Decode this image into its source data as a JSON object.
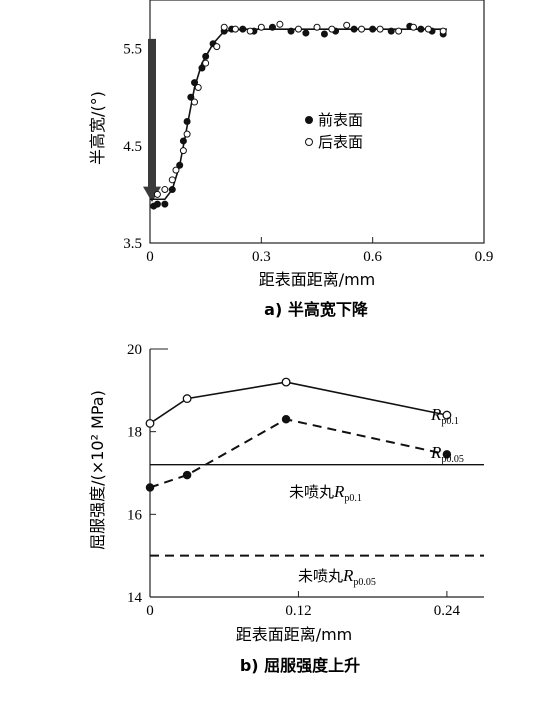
{
  "chart_data": [
    {
      "type": "scatter",
      "caption": "a) 半高宽下降",
      "xlabel": "距表面距离/mm",
      "ylabel": "半高宽/(°)",
      "xlim": [
        0,
        0.9
      ],
      "ylim": [
        3.5,
        6.0
      ],
      "xticks": [
        "0",
        "0.3",
        "0.6",
        "0.9"
      ],
      "yticks": [
        "3.5",
        "4.5",
        "5.5"
      ],
      "grid": false,
      "legend_position": "center-right",
      "series": [
        {
          "name": "前表面",
          "marker": "filled-circle",
          "points": [
            [
              0.01,
              3.88
            ],
            [
              0.02,
              3.9
            ],
            [
              0.04,
              3.9
            ],
            [
              0.06,
              4.05
            ],
            [
              0.08,
              4.3
            ],
            [
              0.09,
              4.55
            ],
            [
              0.1,
              4.75
            ],
            [
              0.11,
              5.0
            ],
            [
              0.12,
              5.15
            ],
            [
              0.14,
              5.3
            ],
            [
              0.15,
              5.42
            ],
            [
              0.17,
              5.55
            ],
            [
              0.2,
              5.68
            ],
            [
              0.22,
              5.7
            ],
            [
              0.25,
              5.7
            ],
            [
              0.28,
              5.68
            ],
            [
              0.33,
              5.72
            ],
            [
              0.38,
              5.68
            ],
            [
              0.42,
              5.66
            ],
            [
              0.47,
              5.65
            ],
            [
              0.5,
              5.68
            ],
            [
              0.55,
              5.7
            ],
            [
              0.6,
              5.7
            ],
            [
              0.65,
              5.68
            ],
            [
              0.7,
              5.73
            ],
            [
              0.73,
              5.7
            ],
            [
              0.76,
              5.68
            ],
            [
              0.79,
              5.65
            ]
          ]
        },
        {
          "name": "后表面",
          "marker": "open-circle",
          "points": [
            [
              0.02,
              4.0
            ],
            [
              0.04,
              4.05
            ],
            [
              0.06,
              4.15
            ],
            [
              0.07,
              4.25
            ],
            [
              0.09,
              4.45
            ],
            [
              0.1,
              4.62
            ],
            [
              0.12,
              4.95
            ],
            [
              0.13,
              5.1
            ],
            [
              0.15,
              5.35
            ],
            [
              0.18,
              5.52
            ],
            [
              0.2,
              5.72
            ],
            [
              0.23,
              5.7
            ],
            [
              0.27,
              5.68
            ],
            [
              0.3,
              5.72
            ],
            [
              0.35,
              5.75
            ],
            [
              0.4,
              5.7
            ],
            [
              0.45,
              5.72
            ],
            [
              0.49,
              5.7
            ],
            [
              0.53,
              5.74
            ],
            [
              0.57,
              5.7
            ],
            [
              0.62,
              5.7
            ],
            [
              0.67,
              5.68
            ],
            [
              0.71,
              5.72
            ],
            [
              0.75,
              5.7
            ],
            [
              0.79,
              5.68
            ]
          ]
        }
      ],
      "trend": [
        [
          0.0,
          3.95
        ],
        [
          0.04,
          3.95
        ],
        [
          0.06,
          4.05
        ],
        [
          0.08,
          4.3
        ],
        [
          0.1,
          4.7
        ],
        [
          0.12,
          5.1
        ],
        [
          0.14,
          5.35
        ],
        [
          0.17,
          5.55
        ],
        [
          0.2,
          5.68
        ],
        [
          0.25,
          5.7
        ],
        [
          0.4,
          5.7
        ],
        [
          0.6,
          5.7
        ],
        [
          0.8,
          5.7
        ]
      ],
      "annotation": "downward arrow at x=0 from 5.6 to 4.0"
    },
    {
      "type": "line",
      "caption": "b) 屈服强度上升",
      "xlabel": "距表面距离/mm",
      "ylabel": "屈服强度/(×10² MPa)",
      "xlim": [
        0,
        0.27
      ],
      "ylim": [
        14,
        20
      ],
      "xticks": [
        "0",
        "0.12",
        "0.24"
      ],
      "yticks": [
        "14",
        "16",
        "18",
        "20"
      ],
      "grid": false,
      "series": [
        {
          "name": "R",
          "subscript": "p0.1",
          "style": "solid",
          "marker": "open-circle",
          "points": [
            [
              0,
              18.2
            ],
            [
              0.03,
              18.8
            ],
            [
              0.11,
              19.2
            ],
            [
              0.24,
              18.4
            ]
          ]
        },
        {
          "name": "R",
          "subscript": "p0.05",
          "style": "dashed",
          "marker": "filled-circle",
          "points": [
            [
              0,
              16.65
            ],
            [
              0.03,
              16.95
            ],
            [
              0.11,
              18.3
            ],
            [
              0.24,
              17.45
            ]
          ]
        }
      ],
      "reference_lines": [
        {
          "label": "未喷丸",
          "name": "R",
          "subscript": "p0.1",
          "style": "solid",
          "y": 17.2
        },
        {
          "label": "未喷丸",
          "name": "R",
          "subscript": "p0.05",
          "style": "dashed",
          "y": 15.0
        }
      ]
    }
  ]
}
